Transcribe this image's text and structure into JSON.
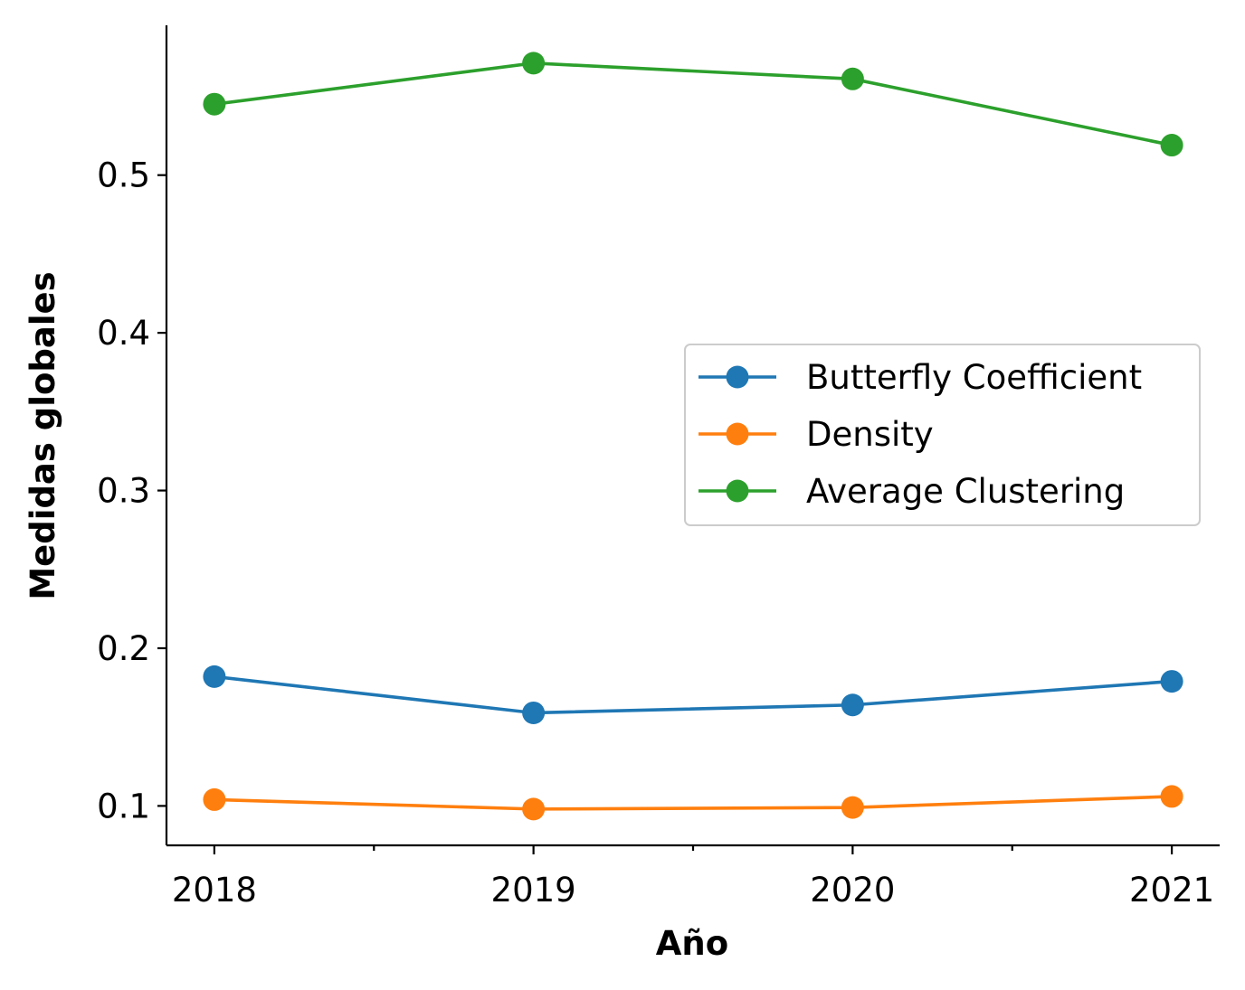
{
  "chart_data": {
    "type": "line",
    "title": "",
    "xlabel": "Año",
    "ylabel": "Medidas globales",
    "x": [
      "2018",
      "2019",
      "2020",
      "2021"
    ],
    "xlim": [
      2017.85,
      2021.15
    ],
    "ylim": [
      0.075,
      0.595
    ],
    "yticks": [
      "0.1",
      "0.2",
      "0.3",
      "0.4",
      "0.5"
    ],
    "grid": false,
    "legend_position": "center-right",
    "series": [
      {
        "name": "Butterfly Coefficient",
        "color": "#1f77b4",
        "values": [
          0.182,
          0.159,
          0.164,
          0.179
        ]
      },
      {
        "name": "Density",
        "color": "#ff7f0e",
        "values": [
          0.104,
          0.098,
          0.099,
          0.106
        ]
      },
      {
        "name": "Average Clustering",
        "color": "#2ca02c",
        "values": [
          0.545,
          0.571,
          0.561,
          0.519
        ]
      }
    ]
  }
}
